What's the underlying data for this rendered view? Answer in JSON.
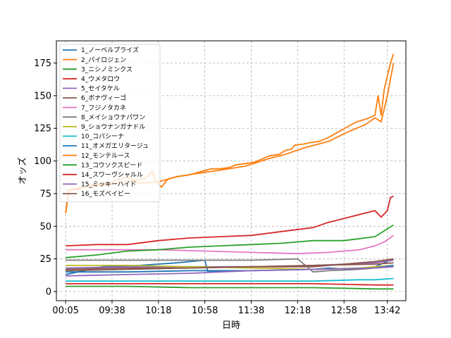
{
  "chart_data": {
    "type": "line",
    "xlabel": "日時",
    "ylabel": "オッズ",
    "x_tick_labels": [
      "00:05",
      "09:38",
      "10:18",
      "10:58",
      "11:38",
      "12:18",
      "12:58",
      "13:42"
    ],
    "ylim": [
      -7,
      192
    ],
    "y_ticks": [
      0,
      25,
      50,
      75,
      100,
      125,
      150,
      175
    ],
    "grid": true,
    "legend_position": "top-left",
    "series": [
      {
        "name": "1_ノーベルプライズ",
        "color": "#1f77b4",
        "points": [
          [
            0,
            13
          ],
          [
            12,
            19
          ],
          [
            24,
            20
          ],
          [
            36,
            22
          ],
          [
            45,
            24
          ],
          [
            46,
            15
          ],
          [
            60,
            16
          ],
          [
            80,
            17
          ],
          [
            85,
            18
          ],
          [
            93,
            17
          ],
          [
            100,
            19
          ],
          [
            103,
            22
          ],
          [
            106,
            25
          ]
        ]
      },
      {
        "name": "2_パイロジェン",
        "color": "#ff7f0e",
        "points": [
          [
            0,
            60
          ],
          [
            1,
            78
          ],
          [
            4,
            78
          ],
          [
            6,
            80
          ],
          [
            9,
            82
          ],
          [
            14,
            83
          ],
          [
            17,
            86
          ],
          [
            21,
            88
          ],
          [
            22,
            85
          ],
          [
            24,
            86
          ],
          [
            26,
            87
          ],
          [
            28,
            92
          ],
          [
            29,
            85
          ],
          [
            31,
            80
          ],
          [
            33,
            86
          ],
          [
            36,
            88
          ],
          [
            39,
            89
          ],
          [
            41,
            90
          ],
          [
            44,
            92
          ],
          [
            47,
            94
          ],
          [
            50,
            94
          ],
          [
            53,
            95
          ],
          [
            55,
            97
          ],
          [
            58,
            98
          ],
          [
            61,
            99
          ],
          [
            63,
            101
          ],
          [
            66,
            104
          ],
          [
            69,
            105
          ],
          [
            71,
            108
          ],
          [
            73,
            109
          ],
          [
            74,
            112
          ],
          [
            77,
            113
          ],
          [
            79,
            114
          ],
          [
            82,
            115
          ],
          [
            85,
            118
          ],
          [
            88,
            122
          ],
          [
            91,
            126
          ],
          [
            94,
            130
          ],
          [
            97,
            132
          ],
          [
            100,
            135
          ],
          [
            101,
            150
          ],
          [
            102,
            135
          ],
          [
            103,
            155
          ],
          [
            104,
            165
          ],
          [
            105,
            175
          ],
          [
            106,
            182
          ]
        ]
      },
      {
        "name": "3_ニシノミンクス",
        "color": "#2ca02c",
        "points": [
          [
            0,
            4
          ],
          [
            20,
            4
          ],
          [
            40,
            3
          ],
          [
            60,
            3
          ],
          [
            80,
            3
          ],
          [
            100,
            2
          ],
          [
            106,
            2
          ]
        ]
      },
      {
        "name": "4_ウメタロウ",
        "color": "#d62728",
        "points": [
          [
            0,
            6
          ],
          [
            20,
            6
          ],
          [
            40,
            6
          ],
          [
            60,
            6
          ],
          [
            80,
            6
          ],
          [
            100,
            5
          ],
          [
            106,
            5
          ]
        ]
      },
      {
        "name": "5_セイタケル",
        "color": "#9467bd",
        "points": [
          [
            0,
            18
          ],
          [
            20,
            19
          ],
          [
            40,
            19
          ],
          [
            60,
            19
          ],
          [
            80,
            20
          ],
          [
            90,
            21
          ],
          [
            100,
            22
          ],
          [
            103,
            23
          ],
          [
            106,
            24
          ]
        ]
      },
      {
        "name": "6_ボナヴィーゴ",
        "color": "#8c564b",
        "points": [
          [
            0,
            17
          ],
          [
            20,
            18
          ],
          [
            40,
            18
          ],
          [
            60,
            19
          ],
          [
            80,
            19
          ],
          [
            90,
            21
          ],
          [
            100,
            23
          ],
          [
            106,
            25
          ]
        ]
      },
      {
        "name": "7_フジノタカネ",
        "color": "#e377c2",
        "points": [
          [
            0,
            32
          ],
          [
            15,
            32
          ],
          [
            30,
            32
          ],
          [
            45,
            31
          ],
          [
            60,
            30
          ],
          [
            75,
            29
          ],
          [
            85,
            30
          ],
          [
            95,
            32
          ],
          [
            100,
            35
          ],
          [
            103,
            38
          ],
          [
            106,
            43
          ]
        ]
      },
      {
        "name": "8_メイショウナパワン",
        "color": "#7f7f7f",
        "points": [
          [
            0,
            24
          ],
          [
            20,
            24
          ],
          [
            40,
            24
          ],
          [
            60,
            24
          ],
          [
            75,
            25
          ],
          [
            80,
            15
          ],
          [
            85,
            16
          ],
          [
            95,
            17
          ],
          [
            100,
            18
          ],
          [
            106,
            20
          ]
        ]
      },
      {
        "name": "9_ショウナンガナドル",
        "color": "#bcbd22",
        "points": [
          [
            0,
            20
          ],
          [
            20,
            20
          ],
          [
            40,
            19
          ],
          [
            60,
            18
          ],
          [
            80,
            17
          ],
          [
            95,
            18
          ],
          [
            100,
            19
          ],
          [
            106,
            20
          ]
        ]
      },
      {
        "name": "10_コパシーナ",
        "color": "#17becf",
        "points": [
          [
            0,
            8
          ],
          [
            20,
            8
          ],
          [
            40,
            8
          ],
          [
            60,
            8
          ],
          [
            80,
            8
          ],
          [
            95,
            9
          ],
          [
            100,
            9
          ],
          [
            106,
            10
          ]
        ]
      },
      {
        "name": "11_オメガエリタージュ",
        "color": "#1f77b4",
        "points": [
          [
            0,
            15
          ],
          [
            20,
            15
          ],
          [
            40,
            16
          ],
          [
            60,
            16
          ],
          [
            80,
            17
          ],
          [
            100,
            18
          ],
          [
            106,
            20
          ]
        ]
      },
      {
        "name": "12_モンテルース",
        "color": "#ff7f0e",
        "points": [
          [
            0,
            60
          ],
          [
            1,
            78
          ],
          [
            6,
            80
          ],
          [
            14,
            82
          ],
          [
            21,
            85
          ],
          [
            24,
            83
          ],
          [
            30,
            84
          ],
          [
            36,
            88
          ],
          [
            44,
            91
          ],
          [
            50,
            93
          ],
          [
            58,
            96
          ],
          [
            66,
            102
          ],
          [
            71,
            105
          ],
          [
            77,
            110
          ],
          [
            85,
            115
          ],
          [
            91,
            122
          ],
          [
            97,
            128
          ],
          [
            100,
            133
          ],
          [
            102,
            130
          ],
          [
            104,
            150
          ],
          [
            106,
            175
          ]
        ]
      },
      {
        "name": "13_コウソクスピード",
        "color": "#2ca02c",
        "points": [
          [
            0,
            26
          ],
          [
            10,
            28
          ],
          [
            20,
            31
          ],
          [
            30,
            32
          ],
          [
            40,
            34
          ],
          [
            50,
            35
          ],
          [
            60,
            36
          ],
          [
            70,
            37
          ],
          [
            80,
            39
          ],
          [
            90,
            39
          ],
          [
            100,
            42
          ],
          [
            102,
            45
          ],
          [
            104,
            48
          ],
          [
            106,
            51
          ]
        ]
      },
      {
        "name": "14_スワーヴシャルル",
        "color": "#d62728",
        "points": [
          [
            0,
            35
          ],
          [
            10,
            36
          ],
          [
            20,
            36
          ],
          [
            30,
            39
          ],
          [
            40,
            41
          ],
          [
            50,
            42
          ],
          [
            60,
            43
          ],
          [
            70,
            46
          ],
          [
            80,
            49
          ],
          [
            85,
            53
          ],
          [
            90,
            56
          ],
          [
            95,
            59
          ],
          [
            100,
            62
          ],
          [
            102,
            57
          ],
          [
            104,
            62
          ],
          [
            105,
            72
          ],
          [
            106,
            73
          ]
        ]
      },
      {
        "name": "15_ミッキーハイド",
        "color": "#9467bd",
        "points": [
          [
            0,
            12
          ],
          [
            20,
            13
          ],
          [
            40,
            14
          ],
          [
            60,
            16
          ],
          [
            80,
            17
          ],
          [
            100,
            18
          ],
          [
            106,
            19
          ]
        ]
      },
      {
        "name": "16_モズベイビー",
        "color": "#8c564b",
        "points": [
          [
            0,
            16
          ],
          [
            20,
            17
          ],
          [
            40,
            18
          ],
          [
            60,
            19
          ],
          [
            80,
            20
          ],
          [
            100,
            21
          ],
          [
            106,
            22
          ]
        ]
      }
    ]
  }
}
